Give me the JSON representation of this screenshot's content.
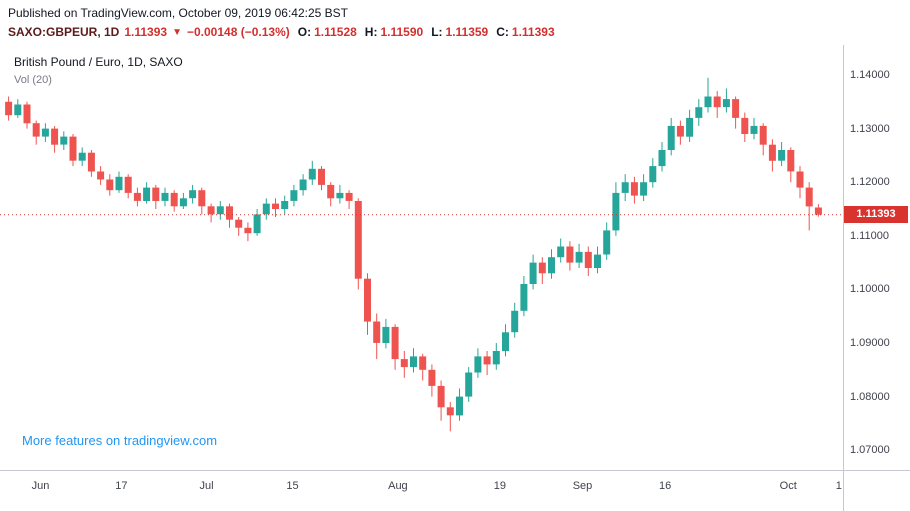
{
  "header": {
    "published": "Published on TradingView.com, October 09, 2019 06:42:25 BST",
    "symbol": "SAXO:GBPEUR, 1D",
    "last": "1.11393",
    "arrow": "▼",
    "change": "−0.00148 (−0.13%)",
    "ohlc": {
      "o_label": "O:",
      "o": "1.11528",
      "h_label": "H:",
      "h": "1.11590",
      "l_label": "L:",
      "l": "1.11359",
      "c_label": "C:",
      "c": "1.11393"
    }
  },
  "chart": {
    "title": "British Pound / Euro, 1D, SAXO",
    "indicator": "Vol (20)",
    "link_text": "More features on tradingview.com"
  },
  "chart_data": {
    "type": "candlestick",
    "title": "British Pound / Euro, 1D, SAXO",
    "symbol": "SAXO:GBPEUR",
    "interval": "1D",
    "grid": false,
    "legend_position": "top-left",
    "price_top": 1.1456,
    "price_bottom": 1.0663,
    "y_ticks": [
      {
        "label": "1.14000",
        "price": 1.14
      },
      {
        "label": "1.13000",
        "price": 1.13
      },
      {
        "label": "1.12000",
        "price": 1.12
      },
      {
        "label": "1.11000",
        "price": 1.11
      },
      {
        "label": "1.10000",
        "price": 1.1
      },
      {
        "label": "1.09000",
        "price": 1.09
      },
      {
        "label": "1.08000",
        "price": 1.08
      },
      {
        "label": "1.07000",
        "price": 1.07
      }
    ],
    "x_ticks": [
      {
        "label": "Jun",
        "pos": 0.048
      },
      {
        "label": "17",
        "pos": 0.144
      },
      {
        "label": "Jul",
        "pos": 0.245
      },
      {
        "label": "15",
        "pos": 0.347
      },
      {
        "label": "Aug",
        "pos": 0.472
      },
      {
        "label": "19",
        "pos": 0.593
      },
      {
        "label": "Sep",
        "pos": 0.691
      },
      {
        "label": "16",
        "pos": 0.789
      },
      {
        "label": "Oct",
        "pos": 0.935
      },
      {
        "label": "1",
        "pos": 0.995
      }
    ],
    "price_line": {
      "price": 1.11393,
      "label": "1.11393"
    },
    "colors": {
      "up": "#26a69a",
      "down": "#ef5350",
      "line": "#d8332f",
      "badge_bg": "#d8332f",
      "badge_text": "#ffffff"
    },
    "candles": [
      [
        1.135,
        1.136,
        1.1315,
        1.1325
      ],
      [
        1.1325,
        1.1355,
        1.132,
        1.1345
      ],
      [
        1.1345,
        1.135,
        1.13,
        1.131
      ],
      [
        1.131,
        1.1315,
        1.127,
        1.1285
      ],
      [
        1.1285,
        1.131,
        1.1275,
        1.13
      ],
      [
        1.13,
        1.1305,
        1.1255,
        1.127
      ],
      [
        1.127,
        1.1295,
        1.126,
        1.1285
      ],
      [
        1.1285,
        1.129,
        1.123,
        1.124
      ],
      [
        1.124,
        1.1265,
        1.123,
        1.1255
      ],
      [
        1.1255,
        1.126,
        1.121,
        1.122
      ],
      [
        1.122,
        1.123,
        1.1195,
        1.1205
      ],
      [
        1.1205,
        1.1215,
        1.1175,
        1.1185
      ],
      [
        1.1185,
        1.122,
        1.118,
        1.121
      ],
      [
        1.121,
        1.1215,
        1.117,
        1.118
      ],
      [
        1.118,
        1.119,
        1.1155,
        1.1165
      ],
      [
        1.1165,
        1.12,
        1.116,
        1.119
      ],
      [
        1.119,
        1.1195,
        1.115,
        1.1165
      ],
      [
        1.1165,
        1.119,
        1.1155,
        1.118
      ],
      [
        1.118,
        1.1185,
        1.1145,
        1.1155
      ],
      [
        1.1155,
        1.118,
        1.115,
        1.117
      ],
      [
        1.117,
        1.1195,
        1.116,
        1.1185
      ],
      [
        1.1185,
        1.119,
        1.114,
        1.1155
      ],
      [
        1.1155,
        1.116,
        1.1125,
        1.114
      ],
      [
        1.114,
        1.1165,
        1.113,
        1.1155
      ],
      [
        1.1155,
        1.116,
        1.1115,
        1.113
      ],
      [
        1.113,
        1.1135,
        1.11,
        1.1115
      ],
      [
        1.1115,
        1.1125,
        1.109,
        1.1105
      ],
      [
        1.1105,
        1.115,
        1.11,
        1.114
      ],
      [
        1.114,
        1.117,
        1.113,
        1.116
      ],
      [
        1.116,
        1.117,
        1.1135,
        1.115
      ],
      [
        1.115,
        1.1175,
        1.114,
        1.1165
      ],
      [
        1.1165,
        1.1195,
        1.1155,
        1.1185
      ],
      [
        1.1185,
        1.1215,
        1.1175,
        1.1205
      ],
      [
        1.1205,
        1.124,
        1.1195,
        1.1225
      ],
      [
        1.1225,
        1.123,
        1.1185,
        1.1195
      ],
      [
        1.1195,
        1.12,
        1.1155,
        1.117
      ],
      [
        1.117,
        1.1195,
        1.116,
        1.118
      ],
      [
        1.118,
        1.1185,
        1.115,
        1.1165
      ],
      [
        1.1165,
        1.117,
        1.1,
        1.102
      ],
      [
        1.102,
        1.103,
        1.0915,
        1.094
      ],
      [
        1.094,
        1.0955,
        1.087,
        1.09
      ],
      [
        1.09,
        1.0945,
        1.089,
        1.093
      ],
      [
        1.093,
        1.0935,
        1.085,
        1.087
      ],
      [
        1.087,
        1.0885,
        1.0835,
        1.0855
      ],
      [
        1.0855,
        1.089,
        1.0845,
        1.0875
      ],
      [
        1.0875,
        1.088,
        1.083,
        1.085
      ],
      [
        1.085,
        1.086,
        1.08,
        1.082
      ],
      [
        1.082,
        1.083,
        1.0755,
        1.078
      ],
      [
        1.078,
        1.079,
        1.0735,
        1.0765
      ],
      [
        1.0765,
        1.0815,
        1.0755,
        1.08
      ],
      [
        1.08,
        1.0855,
        1.079,
        1.0845
      ],
      [
        1.0845,
        1.089,
        1.0835,
        1.0875
      ],
      [
        1.0875,
        1.0885,
        1.084,
        1.086
      ],
      [
        1.086,
        1.09,
        1.085,
        1.0885
      ],
      [
        1.0885,
        1.0935,
        1.0875,
        1.092
      ],
      [
        1.092,
        1.0975,
        1.091,
        1.096
      ],
      [
        1.096,
        1.1025,
        1.095,
        1.101
      ],
      [
        1.101,
        1.1065,
        1.1,
        1.105
      ],
      [
        1.105,
        1.106,
        1.101,
        1.103
      ],
      [
        1.103,
        1.1075,
        1.102,
        1.106
      ],
      [
        1.106,
        1.1095,
        1.105,
        1.108
      ],
      [
        1.108,
        1.109,
        1.1035,
        1.105
      ],
      [
        1.105,
        1.1085,
        1.104,
        1.107
      ],
      [
        1.107,
        1.108,
        1.1025,
        1.104
      ],
      [
        1.104,
        1.108,
        1.103,
        1.1065
      ],
      [
        1.1065,
        1.1125,
        1.1055,
        1.111
      ],
      [
        1.111,
        1.12,
        1.11,
        1.118
      ],
      [
        1.118,
        1.1215,
        1.1165,
        1.12
      ],
      [
        1.12,
        1.121,
        1.116,
        1.1175
      ],
      [
        1.1175,
        1.1215,
        1.1165,
        1.12
      ],
      [
        1.12,
        1.1245,
        1.119,
        1.123
      ],
      [
        1.123,
        1.1275,
        1.122,
        1.126
      ],
      [
        1.126,
        1.132,
        1.125,
        1.1305
      ],
      [
        1.1305,
        1.1315,
        1.127,
        1.1285
      ],
      [
        1.1285,
        1.1335,
        1.1275,
        1.132
      ],
      [
        1.132,
        1.1355,
        1.1305,
        1.134
      ],
      [
        1.134,
        1.1395,
        1.133,
        1.136
      ],
      [
        1.136,
        1.137,
        1.132,
        1.134
      ],
      [
        1.134,
        1.1375,
        1.133,
        1.1355
      ],
      [
        1.1355,
        1.136,
        1.13,
        1.132
      ],
      [
        1.132,
        1.133,
        1.1275,
        1.129
      ],
      [
        1.129,
        1.132,
        1.128,
        1.1305
      ],
      [
        1.1305,
        1.131,
        1.125,
        1.127
      ],
      [
        1.127,
        1.128,
        1.122,
        1.124
      ],
      [
        1.124,
        1.1275,
        1.123,
        1.126
      ],
      [
        1.126,
        1.1265,
        1.12,
        1.122
      ],
      [
        1.122,
        1.123,
        1.117,
        1.119
      ],
      [
        1.119,
        1.12,
        1.111,
        1.1155
      ],
      [
        1.11528,
        1.1159,
        1.11359,
        1.11393
      ]
    ]
  }
}
